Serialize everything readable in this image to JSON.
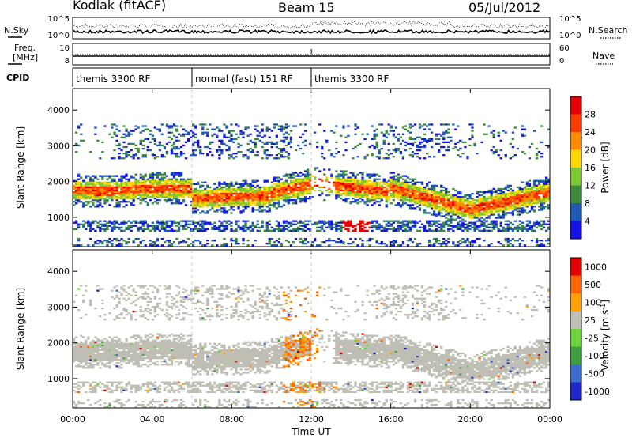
{
  "header": {
    "station": "Kodiak (fitACF)",
    "beam": "Beam 15",
    "date": "05/Jul/2012"
  },
  "panels": {
    "nsky_label": "N.Sky",
    "nsearch_label": "N.Search",
    "freq_label_1": "Freq.",
    "freq_label_2": "[MHz]",
    "nave_label": "Nave",
    "cpid_label": "CPID"
  },
  "cpid_segments": [
    {
      "label": "themis 3300 RF",
      "start_hr": 0,
      "end_hr": 6
    },
    {
      "label": "normal (fast) 151 RF",
      "start_hr": 6,
      "end_hr": 12
    },
    {
      "label": "themis 3300 RF",
      "start_hr": 12,
      "end_hr": 24
    }
  ],
  "chart_data": [
    {
      "type": "line",
      "name": "noise",
      "x_ticks": [
        0,
        4,
        8,
        12,
        16,
        20,
        24
      ],
      "left_ticks": [
        "10^5",
        "10^0"
      ],
      "right_ticks": [
        "10^5",
        "10^0"
      ],
      "xlim": [
        0,
        24
      ]
    },
    {
      "type": "line",
      "name": "frequency",
      "left_ticks": [
        "10",
        "8"
      ],
      "right_ticks": [
        "60",
        "0"
      ],
      "xlim": [
        0,
        24
      ]
    },
    {
      "type": "heatmap",
      "name": "power",
      "ylabel": "Slant Range [km]",
      "y_ticks": [
        1000,
        2000,
        3000,
        4000
      ],
      "ylim": [
        180,
        4600
      ],
      "xlim": [
        0,
        24
      ],
      "colorbar_label": "Power [dB]",
      "colorbar_ticks": [
        "4",
        "8",
        "12",
        "16",
        "20",
        "24",
        "28"
      ],
      "colors": [
        "#1414e6",
        "#1e5ab4",
        "#3c8c3c",
        "#7dc832",
        "#ffd700",
        "#ff8c00",
        "#ff3c00",
        "#e60000"
      ]
    },
    {
      "type": "heatmap",
      "name": "velocity",
      "ylabel": "Slant Range [km]",
      "y_ticks": [
        1000,
        2000,
        3000,
        4000
      ],
      "ylim": [
        180,
        4600
      ],
      "xlim": [
        0,
        24
      ],
      "xlabel": "Time UT",
      "x_tick_labels": [
        "00:00",
        "04:00",
        "08:00",
        "12:00",
        "16:00",
        "20:00",
        "00:00"
      ],
      "colorbar_label": "Velocity [m s^-1]",
      "colorbar_ticks": [
        "1000",
        "500",
        "100",
        "25",
        "-25",
        "-100",
        "-500",
        "-1000"
      ],
      "colors": [
        "#1e28c8",
        "#3c6ed2",
        "#3ca03c",
        "#6ed23c",
        "#bebeb4",
        "#ffa000",
        "#ff6400",
        "#e60000"
      ]
    }
  ]
}
